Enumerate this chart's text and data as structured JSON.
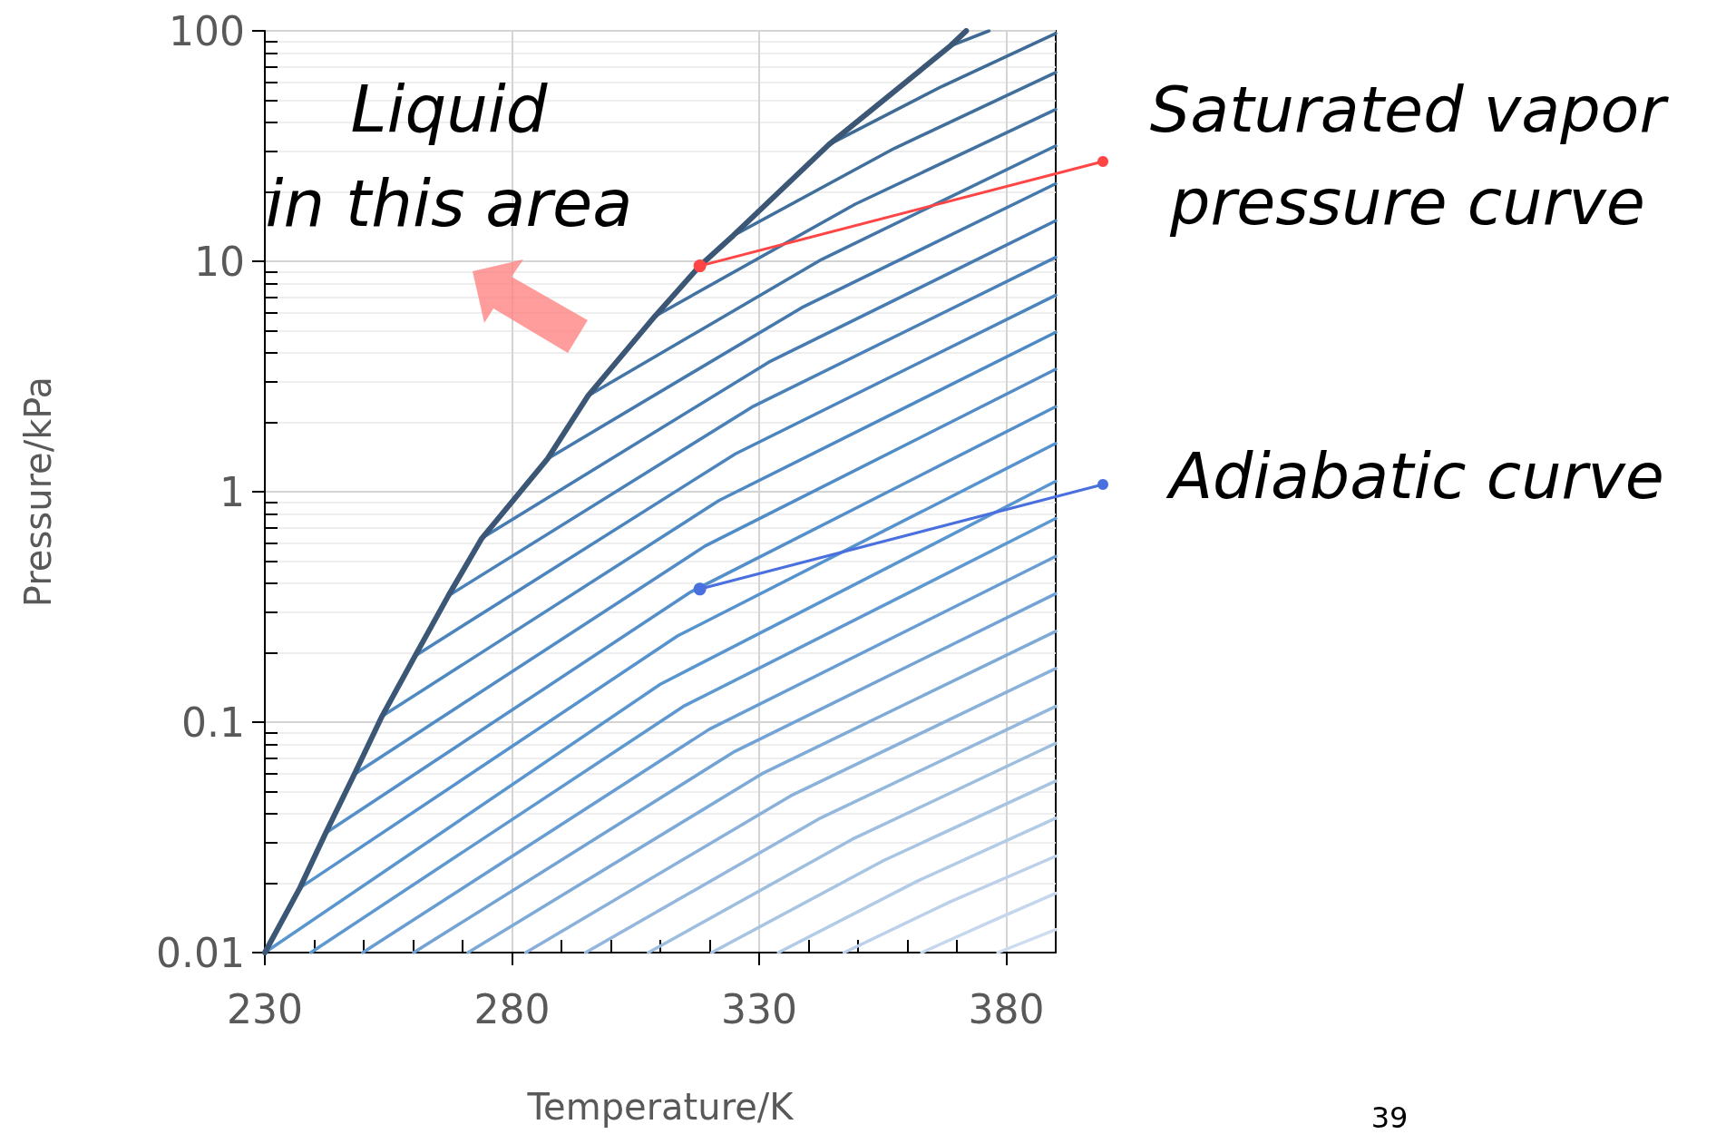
{
  "chart_data": {
    "type": "line",
    "xlabel": "Temperature/K",
    "ylabel": "Pressure/kPa",
    "xlim": [
      230,
      390
    ],
    "xticks": [
      230,
      {
        "value": 240,
        "label": null
      },
      {
        "value": 250,
        "label": null
      },
      {
        "value": 260,
        "label": null
      },
      {
        "value": 270,
        "label": null
      },
      280,
      {
        "value": 290,
        "label": null
      },
      {
        "value": 300,
        "label": null
      },
      {
        "value": 310,
        "label": null
      },
      {
        "value": 320,
        "label": null
      },
      330,
      {
        "value": 340,
        "label": null
      },
      {
        "value": 350,
        "label": null
      },
      {
        "value": 360,
        "label": null
      },
      {
        "value": 370,
        "label": null
      },
      380
    ],
    "ylim": [
      0.01,
      100
    ],
    "yticks": [
      0.01,
      {
        "value": 0.02,
        "label": null
      },
      {
        "value": 0.03,
        "label": null
      },
      {
        "value": 0.04,
        "label": null
      },
      {
        "value": 0.05,
        "label": null
      },
      {
        "value": 0.06,
        "label": null
      },
      {
        "value": 0.07,
        "label": null
      },
      {
        "value": 0.08,
        "label": null
      },
      {
        "value": 0.09,
        "label": null
      },
      0.1,
      {
        "value": 0.2,
        "label": null
      },
      {
        "value": 0.3,
        "label": null
      },
      {
        "value": 0.4,
        "label": null
      },
      {
        "value": 0.5,
        "label": null
      },
      {
        "value": 0.6,
        "label": null
      },
      {
        "value": 0.7,
        "label": null
      },
      {
        "value": 0.8,
        "label": null
      },
      {
        "value": 0.9,
        "label": null
      },
      1,
      {
        "value": 2,
        "label": null
      },
      {
        "value": 3,
        "label": null
      },
      {
        "value": 4,
        "label": null
      },
      {
        "value": 5,
        "label": null
      },
      {
        "value": 6,
        "label": null
      },
      {
        "value": 7,
        "label": null
      },
      {
        "value": 8,
        "label": null
      },
      {
        "value": 9,
        "label": null
      },
      10,
      {
        "value": 20,
        "label": null
      },
      {
        "value": 30,
        "label": null
      },
      {
        "value": 40,
        "label": null
      },
      {
        "value": 50,
        "label": null
      },
      {
        "value": 60,
        "label": null
      },
      {
        "value": 70,
        "label": null
      },
      {
        "value": 80,
        "label": null
      },
      {
        "value": 90,
        "label": null
      },
      100
    ],
    "log": "y",
    "grid": true,
    "marker": "none",
    "annotations": [
      "Liquid\nin this area",
      {
        "text": "Saturated vapor\npressure curve",
        "x": 318,
        "y": 9.55
      },
      {
        "text": "Adiabatic curve",
        "x": 318,
        "y": 0.378
      },
      "39"
    ],
    "series": [
      {
        "color": "#3b5775",
        "x": [
          230,
          237.1,
          242.3,
          248.1,
          253.7,
          260.4,
          267.1,
          273.9,
          287.2,
          295.4,
          308.9,
          318,
          324.7,
          344.1,
          368.7,
          371.9
        ],
        "values": [
          0.01,
          0.0191,
          0.033,
          0.0594,
          0.106,
          0.194,
          0.353,
          0.628,
          1.39,
          2.61,
          5.77,
          9.55,
          12.9,
          32.1,
          86.1,
          100
        ]
      },
      {
        "color": "#5995cf",
        "x": [
          230,
          310,
          390
        ],
        "values": [
          0.01,
          0.146,
          1.11
        ]
      },
      {
        "color": "#5692cd",
        "x": [
          237.1,
          313.55,
          390
        ],
        "values": [
          0.0191,
          0.237,
          1.62
        ]
      },
      {
        "color": "#548fca",
        "x": [
          242.3,
          316.15,
          390
        ],
        "values": [
          0.033,
          0.367,
          2.34
        ]
      },
      {
        "color": "#518cc6",
        "x": [
          248.1,
          319.05,
          390
        ],
        "values": [
          0.0594,
          0.581,
          3.4
        ]
      },
      {
        "color": "#4f89c2",
        "x": [
          253.7,
          321.85,
          390
        ],
        "values": [
          0.106,
          0.915,
          4.92
        ]
      },
      {
        "color": "#4c85bd",
        "x": [
          260.4,
          325.2,
          390
        ],
        "values": [
          0.194,
          1.46,
          7.13
        ]
      },
      {
        "color": "#4a81b8",
        "x": [
          267.1,
          328.55,
          390
        ],
        "values": [
          0.353,
          2.33,
          10.4
        ]
      },
      {
        "color": "#477cb2",
        "x": [
          273.9,
          331.95,
          390
        ],
        "values": [
          0.628,
          3.65,
          15
        ]
      },
      {
        "color": "#4579ad",
        "x": [
          287.2,
          338.6,
          390
        ],
        "values": [
          1.39,
          6.29,
          21.7
        ]
      },
      {
        "color": "#4475a7",
        "x": [
          295.4,
          342.7,
          390
        ],
        "values": [
          2.61,
          10.2,
          31.7
        ]
      },
      {
        "color": "#4272a1",
        "x": [
          308.9,
          349.45,
          390
        ],
        "values": [
          5.77,
          17.7,
          45.6
        ]
      },
      {
        "color": "#416f9c",
        "x": [
          324.7,
          357.35,
          390
        ],
        "values": [
          12.9,
          30.9,
          66
        ]
      },
      {
        "color": "#3f6c97",
        "x": [
          344.1,
          367.05,
          390
        ],
        "values": [
          32.1,
          57.5,
          97.5
        ]
      },
      {
        "color": "#3e6a93",
        "x": [
          368.7,
          376.5
        ],
        "values": [
          86.1,
          100
        ]
      },
      {
        "color": "#5e98d1",
        "x": [
          239.3,
          314.65,
          390
        ],
        "values": [
          0.01,
          0.117,
          0.765
        ]
      },
      {
        "color": "#689dd3",
        "x": [
          249.8,
          319.9,
          390
        ],
        "values": [
          0.01,
          0.0931,
          0.524
        ]
      },
      {
        "color": "#73a3d5",
        "x": [
          260.1,
          325.05,
          390
        ],
        "values": [
          0.01,
          0.0746,
          0.361
        ]
      },
      {
        "color": "#7eaad8",
        "x": [
          271.1,
          330.55,
          390
        ],
        "values": [
          0.01,
          0.0597,
          0.248
        ]
      },
      {
        "color": "#89b1da",
        "x": [
          282.8,
          336.4,
          390
        ],
        "values": [
          0.01,
          0.0479,
          0.171
        ]
      },
      {
        "color": "#93b7dd",
        "x": [
          294.9,
          342.45,
          390
        ],
        "values": [
          0.01,
          0.0384,
          0.117
        ]
      },
      {
        "color": "#9ebee0",
        "x": [
          307.6,
          348.8,
          390
        ],
        "values": [
          0.01,
          0.031,
          0.081
        ]
      },
      {
        "color": "#a8c4e3",
        "x": [
          320.4,
          355.2,
          390
        ],
        "values": [
          0.01,
          0.0251,
          0.0555
        ]
      },
      {
        "color": "#b2cbe6",
        "x": [
          333.9,
          361.95,
          390
        ],
        "values": [
          0.01,
          0.0204,
          0.0383
        ]
      },
      {
        "color": "#bcd1e9",
        "x": [
          347.2,
          368.6,
          390
        ],
        "values": [
          0.01,
          0.0166,
          0.0262
        ]
      },
      {
        "color": "#c5d7ec",
        "x": [
          362.9,
          376.45,
          390
        ],
        "values": [
          0.01,
          0.0135,
          0.0181
        ]
      },
      {
        "color": "#cdddef",
        "x": [
          378.3,
          390
        ],
        "values": [
          0.01,
          0.0126
        ]
      }
    ]
  }
}
